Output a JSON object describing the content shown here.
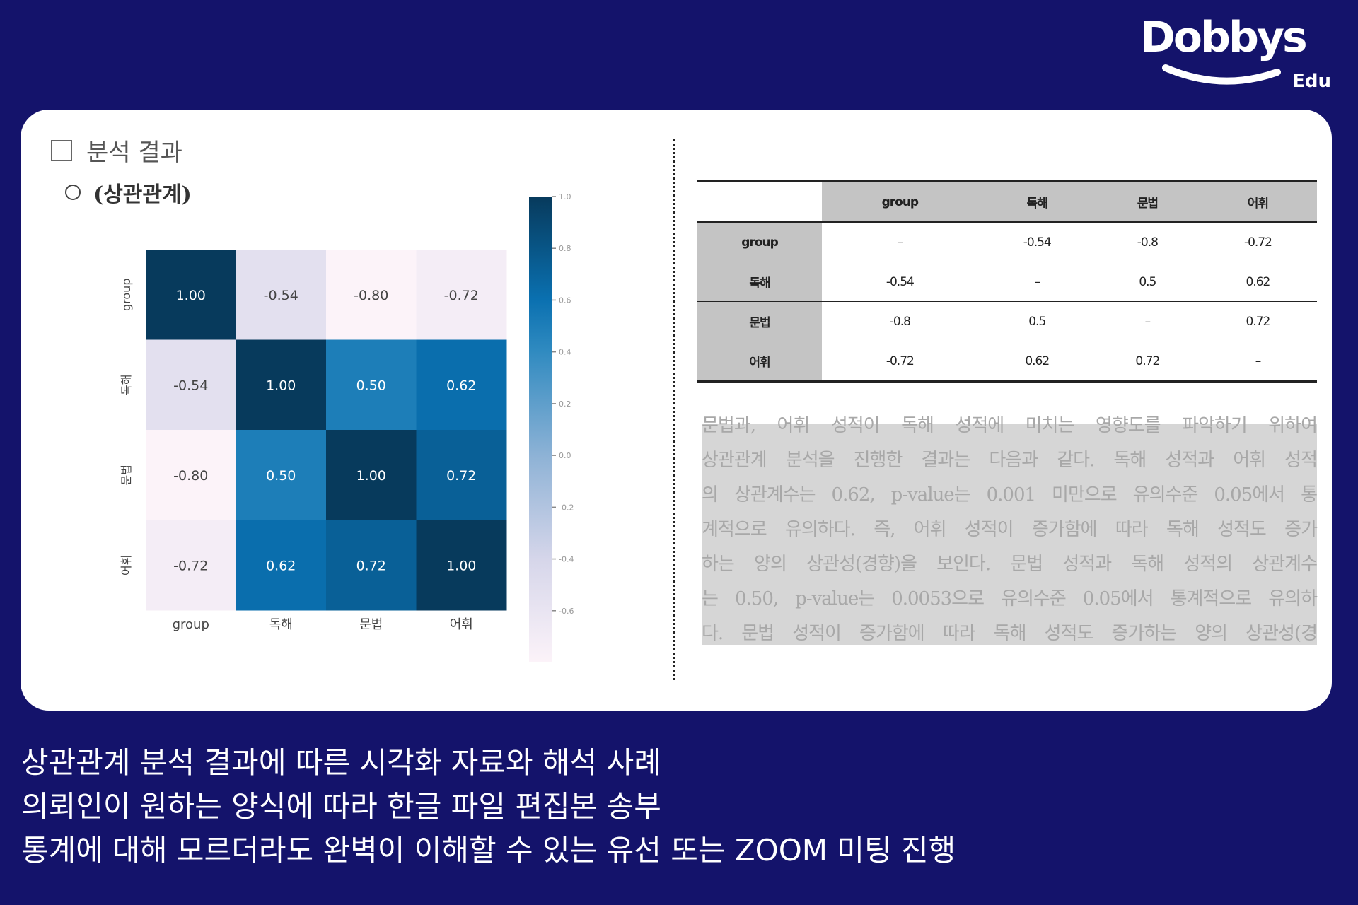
{
  "brand": {
    "name": "Dobbys",
    "sub": "Edu"
  },
  "document": {
    "section_title": "분석 결과",
    "subsection_title": "(상관관계)"
  },
  "chart_data": {
    "type": "heatmap",
    "categories": [
      "group",
      "독해",
      "문법",
      "어휘"
    ],
    "matrix": [
      [
        1.0,
        -0.54,
        -0.8,
        -0.72
      ],
      [
        -0.54,
        1.0,
        0.5,
        0.62
      ],
      [
        -0.8,
        0.5,
        1.0,
        0.72
      ],
      [
        -0.72,
        0.62,
        0.72,
        1.0
      ]
    ],
    "labels": [
      [
        "1.00",
        "-0.54",
        "-0.80",
        "-0.72"
      ],
      [
        "-0.54",
        "1.00",
        "0.50",
        "0.62"
      ],
      [
        "-0.80",
        "0.50",
        "1.00",
        "0.72"
      ],
      [
        "-0.72",
        "0.62",
        "0.72",
        "1.00"
      ]
    ],
    "colorbar": {
      "range": [
        -0.8,
        1.0
      ],
      "ticks": [
        "1.0",
        "0.8",
        "0.6",
        "0.4",
        "0.2",
        "0.0",
        "-0.2",
        "-0.4",
        "-0.6"
      ]
    },
    "colormap": "PuBu"
  },
  "table": {
    "headers": [
      "group",
      "독해",
      "문법",
      "어휘"
    ],
    "rows": [
      {
        "label": "group",
        "cells": [
          "–",
          "-0.54",
          "-0.8",
          "-0.72"
        ]
      },
      {
        "label": "독해",
        "cells": [
          "-0.54",
          "–",
          "0.5",
          "0.62"
        ]
      },
      {
        "label": "문법",
        "cells": [
          "-0.8",
          "0.5",
          "–",
          "0.72"
        ]
      },
      {
        "label": "어휘",
        "cells": [
          "-0.72",
          "0.62",
          "0.72",
          "–"
        ]
      }
    ]
  },
  "paragraph": [
    "문법과, 어휘 성적이 독해 성적에 미치는 영향도를 파악하기 위하여",
    "상관관계 분석을 진행한 결과는 다음과 같다. 독해 성적과 어휘 성적",
    "의 상관계수는 0.62, p-value는 0.001 미만으로 유의수준 0.05에서 통",
    "계적으로 유의하다. 즉, 어휘 성적이 증가함에 따라 독해 성적도 증가",
    "하는 양의 상관성(경향)을 보인다. 문법 성적과 독해 성적의 상관계수",
    "는 0.50, p-value는 0.0053으로 유의수준 0.05에서 통계적으로 유의하",
    "다. 문법 성적이 증가함에 따라 독해 성적도 증가하는 양의 상관성(경"
  ],
  "caption": [
    "상관관계 분석 결과에 따른 시각화 자료와 해석 사례",
    "의뢰인이 원하는 양식에 따라 한글 파일 편집본 송부",
    "통계에 대해 모르더라도 완벽이 이해할 수 있는 유선 또는 ZOOM 미팅 진행"
  ],
  "colors": {
    "background": "#14136b",
    "card": "#ffffff",
    "table_header": "#c4c4c4",
    "paragraph_bg": "#d6d6d6"
  }
}
